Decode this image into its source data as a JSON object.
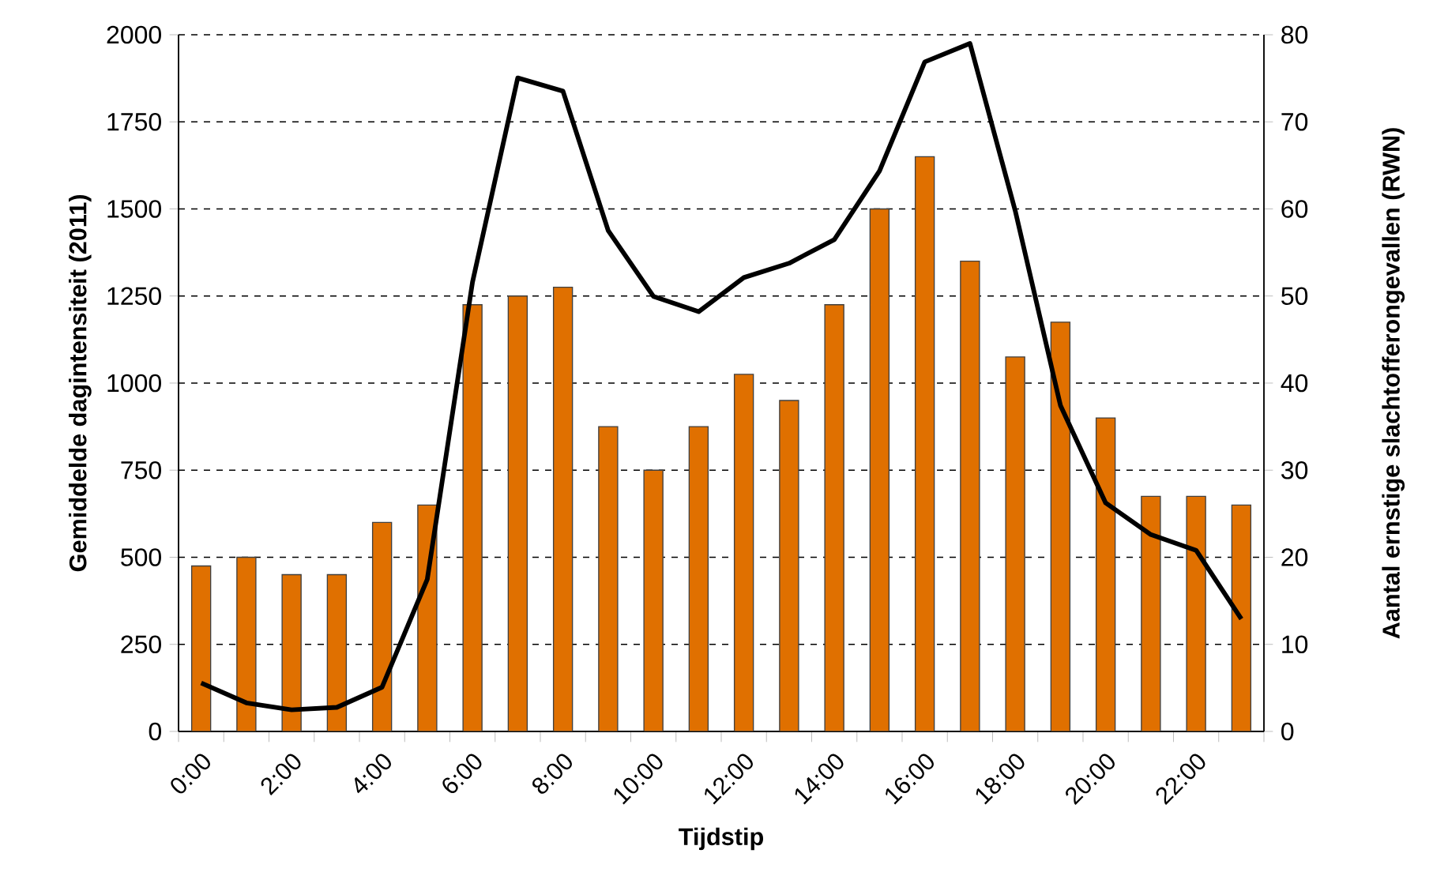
{
  "chart_data": {
    "type": "bar",
    "xlabel": "Tijdstip",
    "ylabel": "Gemiddelde dagintensiteit (2011)",
    "y2label": "Aantal ernstige slachtofferongevallen (RWN)",
    "categories": [
      "0:00",
      null,
      "2:00",
      null,
      "4:00",
      null,
      "6:00",
      null,
      "8:00",
      null,
      "10:00",
      null,
      "12:00",
      null,
      "14:00",
      null,
      "16:00",
      null,
      "18:00",
      null,
      "20:00",
      null,
      "22:00",
      null
    ],
    "ylim": [
      0,
      2000
    ],
    "yticks": [
      0,
      250,
      500,
      750,
      1000,
      1250,
      1500,
      1750,
      2000
    ],
    "y2lim": [
      0,
      80
    ],
    "y2ticks": [
      0,
      10,
      20,
      30,
      40,
      50,
      60,
      70,
      80
    ],
    "grid": "y",
    "marker": "none",
    "series": [
      {
        "axis": "y2",
        "color": "#e07000",
        "values": [
          19,
          20,
          18,
          18,
          24,
          26,
          49,
          50,
          51,
          35,
          30,
          35,
          41,
          38,
          49,
          60,
          66,
          54,
          43,
          47,
          36,
          27,
          27,
          26
        ]
      },
      {
        "type": "line",
        "color": "#000000",
        "values": [
          139,
          82,
          62,
          69,
          127,
          437,
          1290,
          1876,
          1838,
          1438,
          1249,
          1205,
          1303,
          1344,
          1412,
          1609,
          1922,
          1975,
          1495,
          936,
          656,
          565,
          520,
          323
        ]
      }
    ]
  }
}
